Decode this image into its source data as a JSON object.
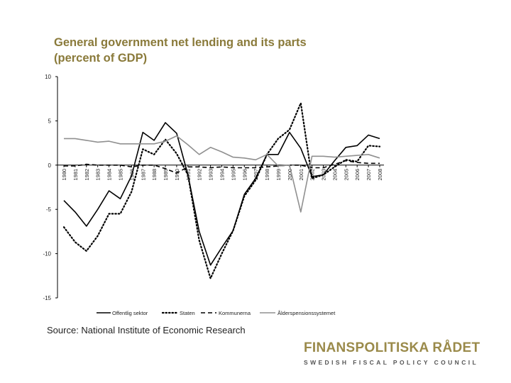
{
  "title_lines": [
    "General government net lending and its parts",
    "(percent of GDP)"
  ],
  "source": "Source: National Institute of Economic Research",
  "brand": {
    "name": "FINANSPOLITISKA RÅDET",
    "tagline": "SWEDISH FISCAL POLICY COUNCIL"
  },
  "colors": {
    "title": "#8a7a3a",
    "black": "#000000",
    "grey": "#909090",
    "axis": "#000000"
  },
  "chart_data": {
    "type": "line",
    "x": [
      1980,
      1981,
      1982,
      1983,
      1984,
      1985,
      1986,
      1987,
      1988,
      1989,
      1990,
      1991,
      1992,
      1993,
      1994,
      1995,
      1996,
      1997,
      1998,
      1999,
      2000,
      2001,
      2002,
      2003,
      2004,
      2005,
      2006,
      2007,
      2008
    ],
    "x_tick_labels": [
      "1980",
      "1981",
      "1982",
      "1983",
      "1984",
      "1985",
      "1986",
      "1987",
      "1988",
      "1989",
      "1990",
      "1991",
      "1992",
      "1993",
      "1994",
      "1995",
      "1996",
      "1997",
      "1998",
      "1999",
      "2000",
      "2001",
      "2002",
      "2003",
      "2004",
      "2005",
      "2006",
      "2007",
      "2008"
    ],
    "ylim": [
      -15,
      10
    ],
    "y_ticks": [
      -15,
      -10,
      -5,
      0,
      5,
      10
    ],
    "y_tick_labels": [
      "-15",
      "-10",
      "-5",
      "0",
      "5",
      "10"
    ],
    "series": [
      {
        "name": "Offentlig sektor",
        "style": "solid-black",
        "values": [
          -4,
          -5.3,
          -6.9,
          -5,
          -2.9,
          -3.8,
          -1.2,
          3.7,
          2.8,
          4.8,
          3.6,
          -1.1,
          -7.5,
          -11.3,
          -9.3,
          -7.4,
          -3.3,
          -1.5,
          1.2,
          1.2,
          3.7,
          1.9,
          -1.3,
          -1.1,
          0.5,
          2,
          2.2,
          3.4,
          3
        ]
      },
      {
        "name": "Staten",
        "style": "dotted-black",
        "values": [
          -7,
          -8.7,
          -9.7,
          -8,
          -5.5,
          -5.5,
          -3,
          1.8,
          1.2,
          2.9,
          1.3,
          -1.1,
          -8.5,
          -12.8,
          -10,
          -7.4,
          -3.5,
          -1.7,
          1.2,
          3,
          4,
          7,
          -1.5,
          -1.1,
          -0.2,
          0.6,
          0.4,
          2.2,
          2.1
        ]
      },
      {
        "name": "Kommunerna",
        "style": "dashed-black",
        "values": [
          -0.1,
          -0.1,
          0.1,
          0,
          0,
          0,
          -0.2,
          0,
          0,
          -0.4,
          -0.9,
          -0.2,
          -0.2,
          -0.3,
          -0.2,
          -0.3,
          -0.3,
          -0.3,
          -0.2,
          -0.1,
          0,
          0,
          -0.3,
          -0.3,
          0.1,
          0.5,
          0.3,
          0.2,
          0.2
        ]
      },
      {
        "name": "Ålderspensionssystemet",
        "style": "solid-grey",
        "values": [
          3,
          3,
          2.8,
          2.6,
          2.7,
          2.4,
          2.4,
          2.4,
          2.4,
          2.7,
          3.3,
          2.3,
          1.2,
          2,
          1.5,
          0.9,
          0.8,
          0.6,
          1.2,
          -0.1,
          0,
          -5.3,
          1,
          1,
          0.9,
          1,
          1.1,
          1.2,
          0.8
        ]
      }
    ],
    "legend_position": "bottom",
    "legend": [
      "Offentlig sektor",
      "Staten",
      "Kommunerna",
      "Ålderspensionssystemet"
    ]
  }
}
